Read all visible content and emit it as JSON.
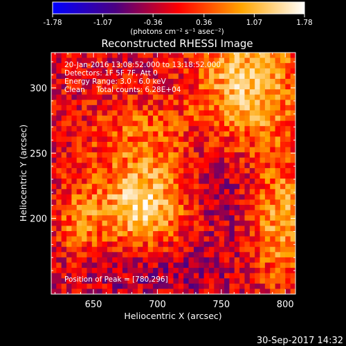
{
  "colorbar": {
    "ticks": [
      "-1.78",
      "-1.07",
      "-0.36",
      "0.36",
      "1.07",
      "1.78"
    ],
    "tick_values": [
      -1.78,
      -1.07,
      -0.36,
      0.36,
      1.07,
      1.78
    ],
    "unit_label": "(photons cm⁻² s⁻¹ asec⁻²)",
    "range": [
      -1.78,
      1.78
    ]
  },
  "annotations": {
    "time": "20-Jan-2016 13:08:52.000 to 13:18:52.000",
    "detectors": "Detectors: 1F 5F 7F, Att 0",
    "energy": "Energy Range: 3.0 - 6.0 keV",
    "clean": "Clean     Total counts: 6.28E+04",
    "peak": "Position of Peak = [780,296]"
  },
  "footer": {
    "timestamp": "30-Sep-2017 14:32"
  },
  "chart_data": {
    "type": "heatmap",
    "title": "Reconstructed RHESSI Image",
    "xlabel": "Heliocentric X (arcsec)",
    "ylabel": "Heliocentric Y (arcsec)",
    "x_ticks": [
      650,
      700,
      750,
      800
    ],
    "y_ticks": [
      200,
      250,
      300
    ],
    "xlim": [
      617,
      808
    ],
    "ylim": [
      142,
      327
    ],
    "value_range": [
      -1.78,
      1.78
    ],
    "grid_resolution": [
      48,
      46
    ],
    "colormap": "blue-purple-red-yellow-white",
    "colormap_stops": [
      "#0000ff",
      "#4b0082",
      "#ff0000",
      "#ffa500",
      "#ffffff"
    ],
    "sources": [
      {
        "x": 690,
        "y": 210,
        "sigma_x": 26,
        "sigma_y": 22,
        "amplitude": 1.55
      },
      {
        "x": 770,
        "y": 302,
        "sigma_x": 28,
        "sigma_y": 34,
        "amplitude": 1.45
      },
      {
        "x": 693,
        "y": 262,
        "sigma_x": 32,
        "sigma_y": 22,
        "amplitude": 0.75
      },
      {
        "x": 796,
        "y": 198,
        "sigma_x": 16,
        "sigma_y": 34,
        "amplitude": 1.1
      },
      {
        "x": 638,
        "y": 195,
        "sigma_x": 12,
        "sigma_y": 22,
        "amplitude": 0.7
      },
      {
        "x": 690,
        "y": 160,
        "sigma_x": 45,
        "sigma_y": 14,
        "amplitude": -0.35
      },
      {
        "x": 740,
        "y": 240,
        "sigma_x": 28,
        "sigma_y": 40,
        "amplitude": -0.45
      }
    ],
    "peak": [
      780,
      296
    ]
  }
}
